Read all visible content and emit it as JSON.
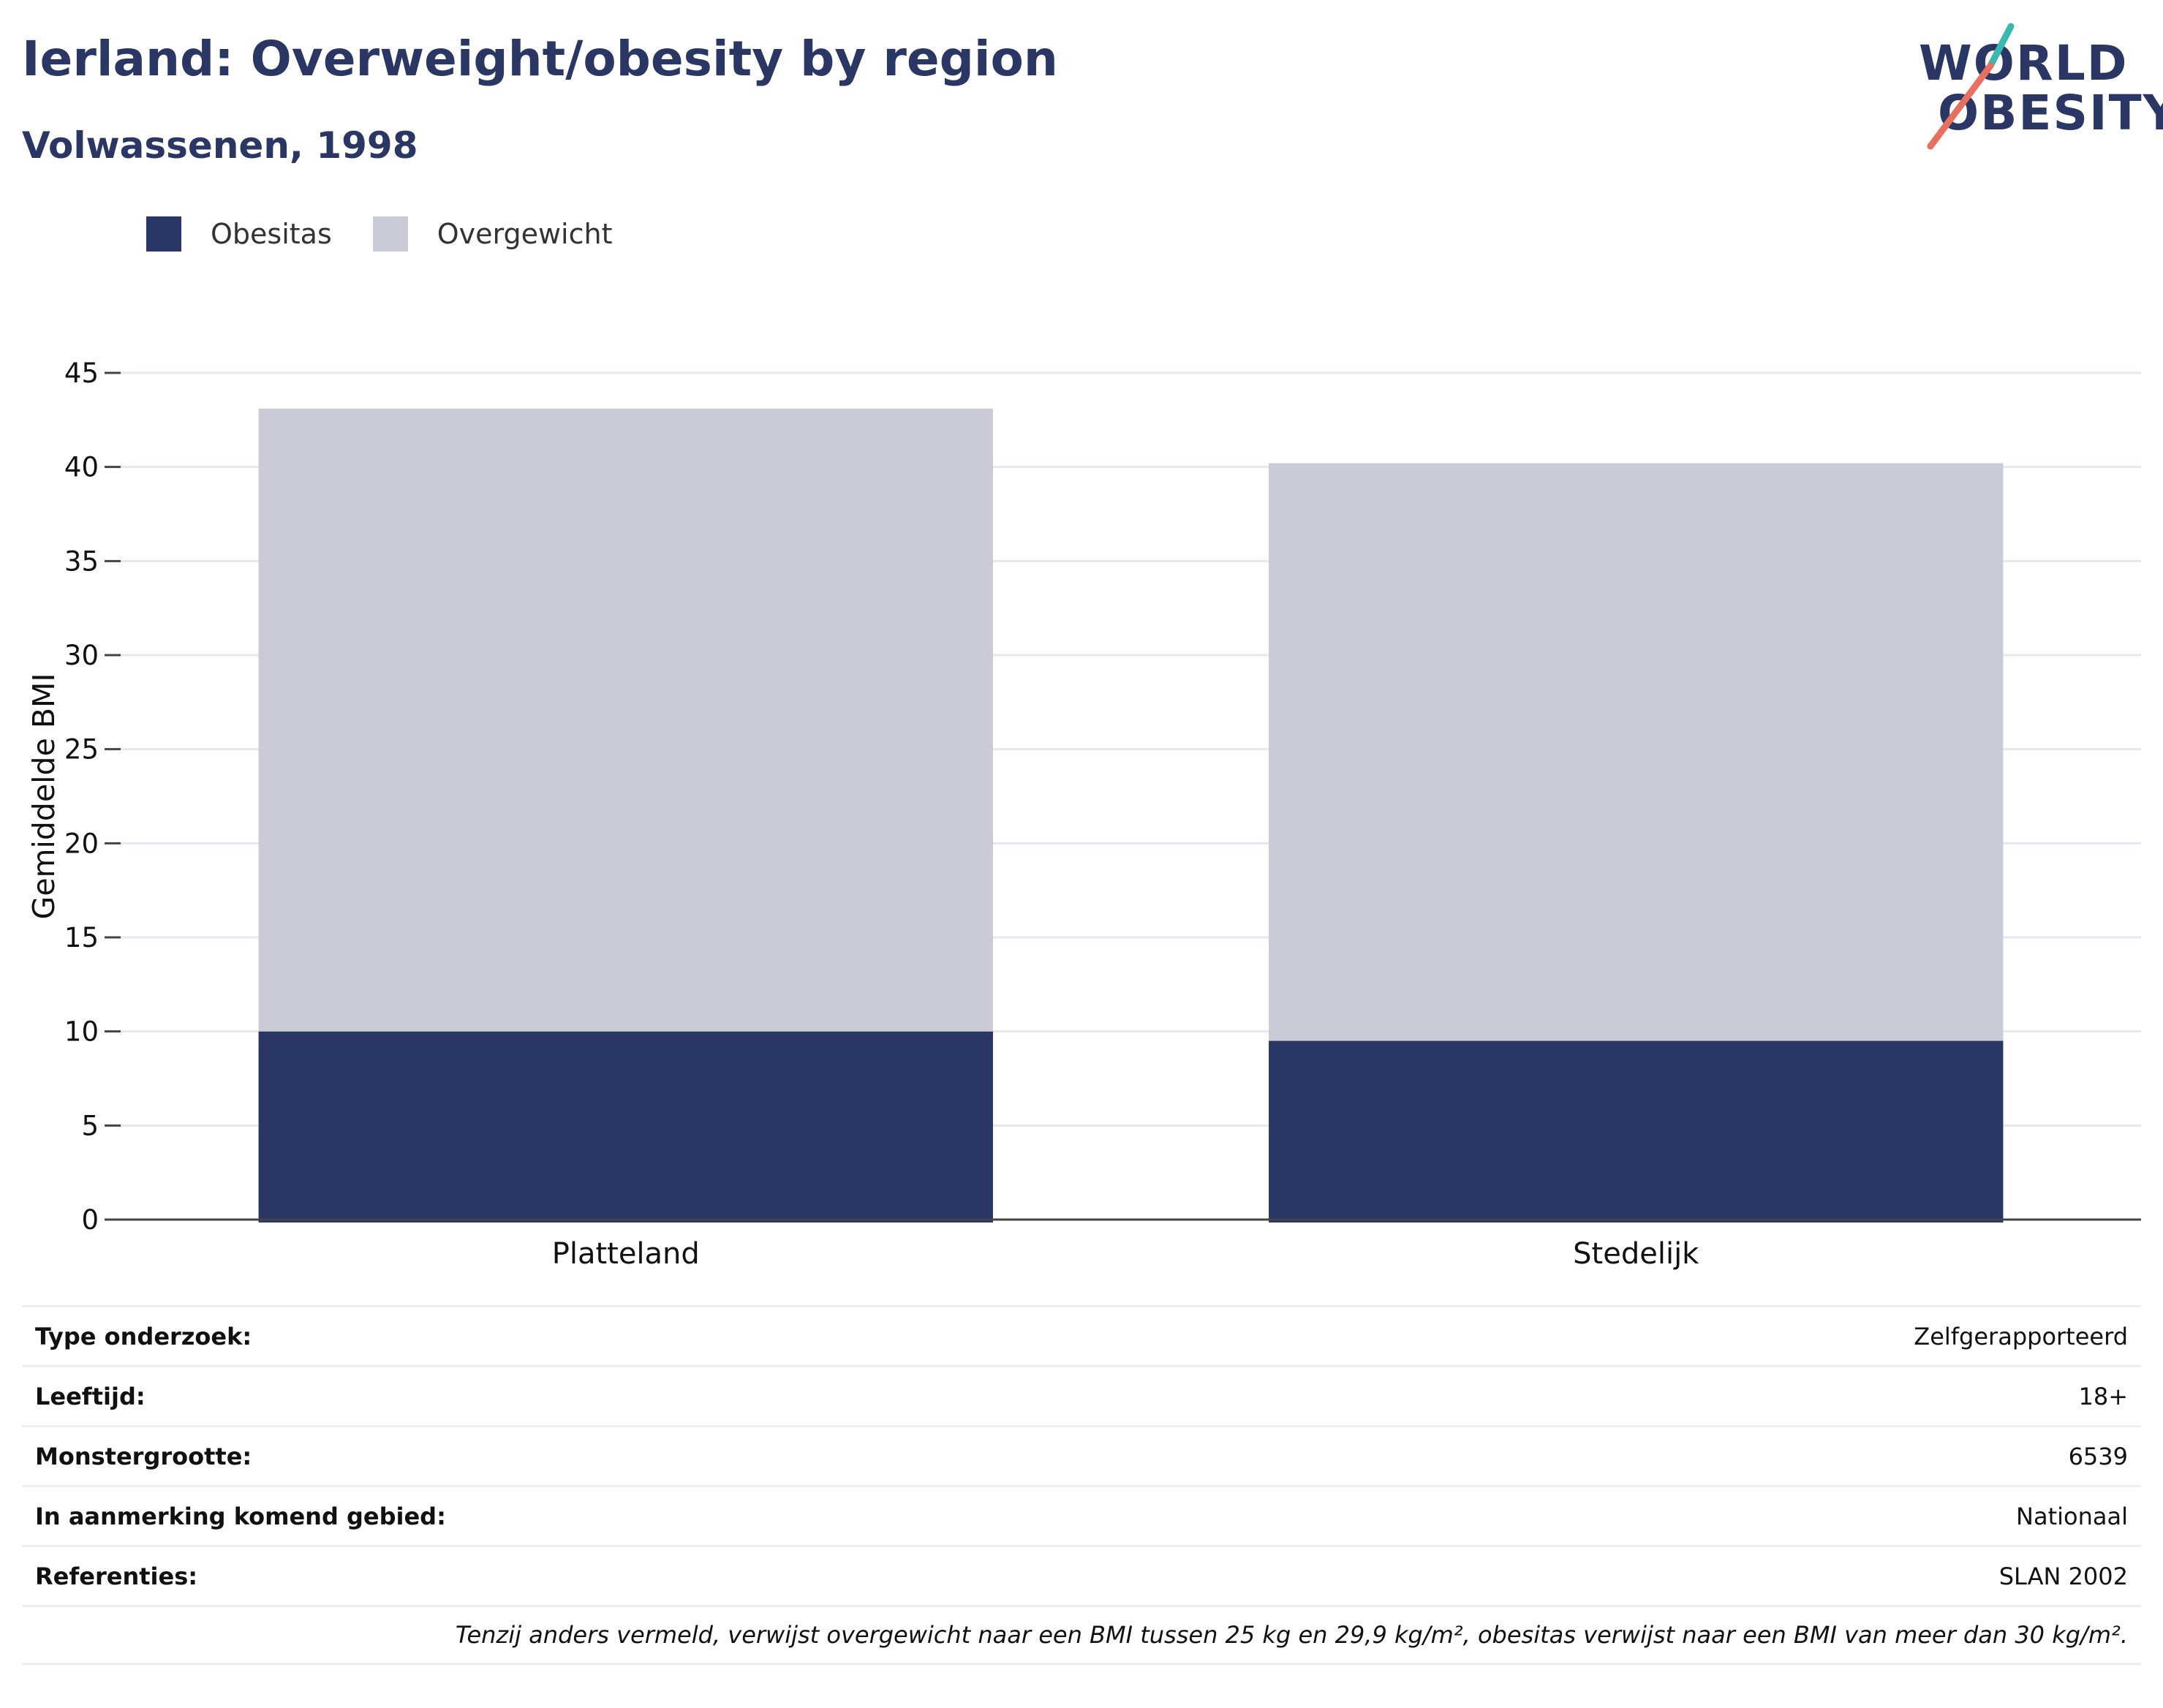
{
  "header": {
    "title": "Ierland: Overweight/obesity by region",
    "subtitle": "Volwassenen, 1998"
  },
  "logo": {
    "line1": "WORLD",
    "line2": "OBESITY",
    "alt": "World Obesity logo"
  },
  "colors": {
    "obesity": "#2a3663",
    "overweight": "#c9cbd7",
    "accent_teal": "#3bb8b0",
    "accent_coral": "#e8705f"
  },
  "legend": [
    {
      "label": "Obesitas",
      "color": "#2a3663"
    },
    {
      "label": "Overgewicht",
      "color": "#c9cbd7"
    }
  ],
  "chart_data": {
    "type": "bar",
    "stacked": true,
    "categories": [
      "Platteland",
      "Stedelijk"
    ],
    "series": [
      {
        "name": "Obesitas",
        "values": [
          10.0,
          9.5
        ]
      },
      {
        "name": "Overgewicht",
        "values": [
          33.1,
          30.7
        ]
      }
    ],
    "ylabel": "Gemiddelde BMI",
    "ylim": [
      0,
      45
    ],
    "yticks": [
      0,
      5,
      10,
      15,
      20,
      25,
      30,
      35,
      40,
      45
    ],
    "grid": true,
    "legend_position": "top-left"
  },
  "info_table": [
    {
      "key": "Type onderzoek:",
      "value": "Zelfgerapporteerd"
    },
    {
      "key": "Leeftijd:",
      "value": "18+"
    },
    {
      "key": "Monstergrootte:",
      "value": "6539"
    },
    {
      "key": "In aanmerking komend gebied:",
      "value": "Nationaal"
    },
    {
      "key": "Referenties:",
      "value": "SLAN 2002"
    }
  ],
  "footnote": "Tenzij anders vermeld, verwijst overgewicht naar een BMI tussen 25 kg en 29,9 kg/m², obesitas verwijst naar een BMI van meer dan 30 kg/m²."
}
